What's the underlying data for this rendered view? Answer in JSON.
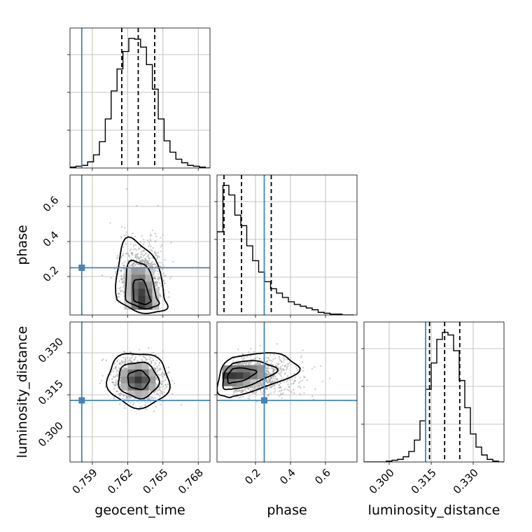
{
  "chart_data": {
    "type": "corner",
    "parameters": [
      "geocent_time",
      "phase",
      "luminosity_distance"
    ],
    "axis_labels": {
      "x": [
        "geocent_time",
        "phase",
        "luminosity_distance"
      ],
      "y": [
        "phase",
        "luminosity_distance"
      ]
    },
    "ranges": {
      "geocent_time": [
        0.7571,
        0.769
      ],
      "phase": [
        -0.02,
        0.78
      ],
      "luminosity_distance": [
        0.291,
        0.341
      ]
    },
    "ticks": {
      "geocent_time": [
        "0.759",
        "0.762",
        "0.765",
        "0.768"
      ],
      "phase": [
        "0.2",
        "0.4",
        "0.6"
      ],
      "luminosity_distance": [
        "0.300",
        "0.315",
        "0.330"
      ]
    },
    "truths": {
      "geocent_time": 0.7581,
      "phase": 0.25,
      "luminosity_distance": 0.313
    },
    "quantiles": {
      "geocent_time": [
        0.7615,
        0.7629,
        0.7643
      ],
      "phase": [
        0.02,
        0.12,
        0.29
      ],
      "luminosity_distance": [
        0.3144,
        0.3198,
        0.3252
      ]
    },
    "histograms": {
      "geocent_time": {
        "edges": [
          0.7571,
          0.7576,
          0.7581,
          0.7586,
          0.7591,
          0.7596,
          0.7601,
          0.7606,
          0.7611,
          0.7616,
          0.7621,
          0.7626,
          0.7631,
          0.7636,
          0.7641,
          0.7646,
          0.7651,
          0.7656,
          0.7661,
          0.7666,
          0.7671,
          0.7676,
          0.7681,
          0.7686,
          0.769
        ],
        "counts": [
          1,
          2,
          3,
          7,
          15,
          30,
          56,
          88,
          113,
          133,
          148,
          147,
          138,
          118,
          90,
          56,
          31,
          18,
          10,
          6,
          3,
          2,
          1,
          0
        ]
      },
      "phase": {
        "edges": [
          -0.02,
          0.014,
          0.048,
          0.082,
          0.116,
          0.15,
          0.184,
          0.218,
          0.252,
          0.286,
          0.32,
          0.354,
          0.388,
          0.422,
          0.456,
          0.49,
          0.524,
          0.558,
          0.592,
          0.626,
          0.66,
          0.694,
          0.728,
          0.762
        ],
        "counts": [
          95,
          148,
          137,
          114,
          102,
          79,
          62,
          49,
          38,
          30,
          25,
          20,
          15,
          12,
          10,
          8,
          6,
          3,
          2,
          1,
          1,
          0,
          0
        ]
      },
      "luminosity_distance": {
        "edges": [
          0.291,
          0.293,
          0.295,
          0.297,
          0.299,
          0.301,
          0.303,
          0.305,
          0.307,
          0.309,
          0.311,
          0.313,
          0.315,
          0.317,
          0.319,
          0.321,
          0.323,
          0.325,
          0.327,
          0.329,
          0.331,
          0.333,
          0.335,
          0.337,
          0.339,
          0.341
        ],
        "counts": [
          0,
          0,
          0,
          0,
          1,
          2,
          3,
          6,
          12,
          25,
          47,
          83,
          113,
          140,
          148,
          145,
          127,
          93,
          62,
          32,
          17,
          8,
          3,
          1,
          0
        ]
      }
    },
    "posterior_peaks": {
      "geocent_time_phase": {
        "geocent_time": 0.7632,
        "phase": 0.07
      },
      "geocent_time_luminosity_distance": {
        "geocent_time": 0.7629,
        "luminosity_distance": 0.3203
      },
      "phase_luminosity_distance": {
        "phase": 0.07,
        "luminosity_distance": 0.3218
      }
    },
    "contour_levels": 3,
    "grid": true,
    "colors": {
      "truth": "#4682b4",
      "line": "#000000",
      "scatter": "#9a9a9a",
      "grid": "#b0b0b0"
    }
  }
}
